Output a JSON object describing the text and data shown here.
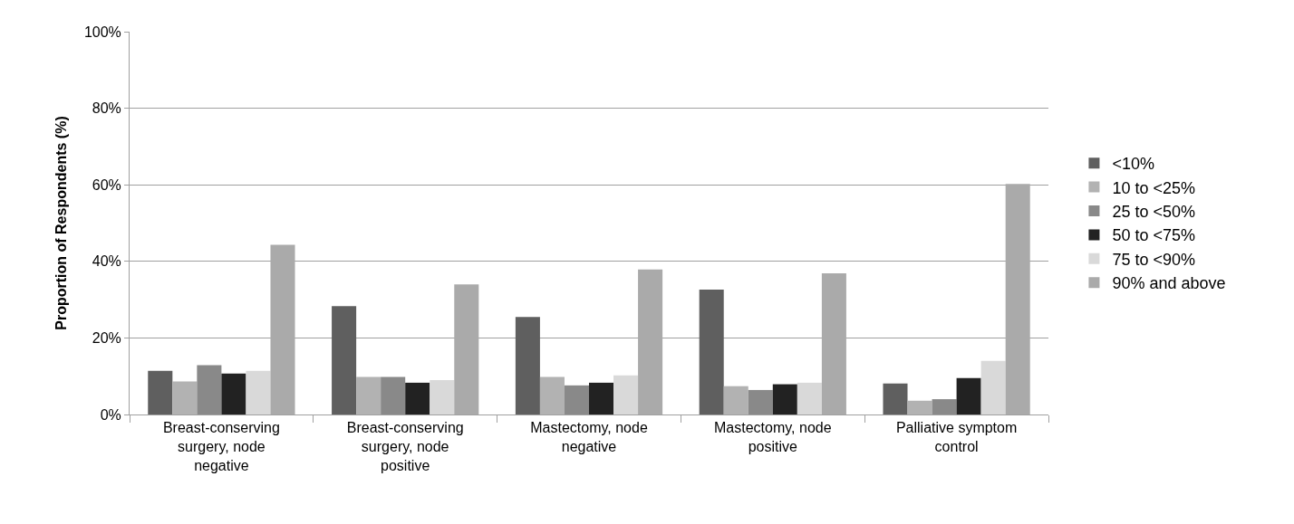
{
  "chart_data": {
    "type": "bar",
    "ylabel": "Proportion of Respondents (%)",
    "categories": [
      "Breast-conserving surgery, node negative",
      "Breast-conserving surgery, node positive",
      "Mastectomy, node negative",
      "Mastectomy, node positive",
      "Palliative symptom control"
    ],
    "series": [
      {
        "name": "<10%",
        "color": "#5f5f5f",
        "values": [
          11.4,
          28.3,
          25.5,
          32.6,
          8.1
        ]
      },
      {
        "name": "10 to <25%",
        "color": "#b2b2b2",
        "values": [
          8.6,
          9.8,
          9.8,
          7.4,
          3.6
        ]
      },
      {
        "name": "25 to <50%",
        "color": "#898989",
        "values": [
          12.9,
          9.8,
          7.6,
          6.4,
          4.0
        ]
      },
      {
        "name": "50 to <75%",
        "color": "#222222",
        "values": [
          10.7,
          8.3,
          8.3,
          7.9,
          9.5
        ]
      },
      {
        "name": "75 to <90%",
        "color": "#d9d9d9",
        "values": [
          11.4,
          9.0,
          10.2,
          8.3,
          14.0
        ]
      },
      {
        "name": "90% and above",
        "color": "#aaaaaa",
        "values": [
          44.3,
          34.0,
          37.9,
          36.9,
          60.2
        ]
      }
    ],
    "ylim": [
      0,
      100
    ],
    "yticks": [
      {
        "value": 0,
        "label": "0%"
      },
      {
        "value": 20,
        "label": "20%"
      },
      {
        "value": 40,
        "label": "40%"
      },
      {
        "value": 60,
        "label": "60%"
      },
      {
        "value": 80,
        "label": "80%"
      },
      {
        "value": 100,
        "label": "100%"
      }
    ],
    "grid": "y",
    "legend": "right"
  }
}
